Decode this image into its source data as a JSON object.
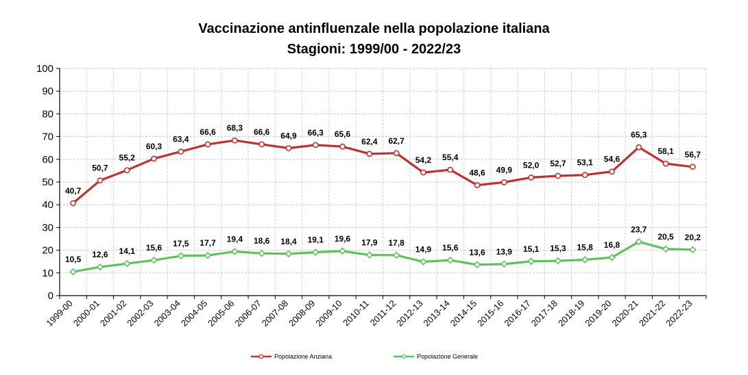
{
  "chart_data": {
    "type": "line",
    "title": "Vaccinazione antinfluenzale nella popolazione italiana",
    "subtitle": "Stagioni: 1999/00 - 2022/23",
    "xlabel": "",
    "ylabel": "",
    "ylim": [
      0,
      100
    ],
    "yticks": [
      "0",
      "10",
      "20",
      "30",
      "40",
      "50",
      "60",
      "70",
      "80",
      "90",
      "100"
    ],
    "grid": true,
    "legend_position": "bottom",
    "categories": [
      "1999-00",
      "2000-01",
      "2001-02",
      "2002-03",
      "2003-04",
      "2004-05",
      "2005-06",
      "2006-07",
      "2007-08",
      "2008-09",
      "2009-10",
      "2010-11",
      "2011-12",
      "2012-13",
      "2013-14",
      "2014-15",
      "2015-16",
      "2016-17",
      "2017-18",
      "2018-19",
      "2019-20",
      "2020-21",
      "2021-22",
      "2022-23"
    ],
    "series": [
      {
        "name": "Popolazione Anziana",
        "color": "#c0302c",
        "values": [
          40.7,
          50.7,
          55.2,
          60.3,
          63.4,
          66.6,
          68.3,
          66.6,
          64.9,
          66.3,
          65.6,
          62.4,
          62.7,
          54.2,
          55.4,
          48.6,
          49.9,
          52.0,
          52.7,
          53.1,
          54.6,
          65.3,
          58.1,
          56.7
        ],
        "labels": [
          "40,7",
          "50,7",
          "55,2",
          "60,3",
          "63,4",
          "66,6",
          "68,3",
          "66,6",
          "64,9",
          "66,3",
          "65,6",
          "62,4",
          "62,7",
          "54,2",
          "55,4",
          "48,6",
          "49,9",
          "52,0",
          "52,7",
          "53,1",
          "54,6",
          "65,3",
          "58,1",
          "56,7"
        ]
      },
      {
        "name": "Popolazione Generale",
        "color": "#5cc35c",
        "values": [
          10.5,
          12.6,
          14.1,
          15.6,
          17.5,
          17.7,
          19.4,
          18.6,
          18.4,
          19.1,
          19.6,
          17.9,
          17.8,
          14.9,
          15.6,
          13.6,
          13.9,
          15.1,
          15.3,
          15.8,
          16.8,
          23.7,
          20.5,
          20.2
        ],
        "labels": [
          "10,5",
          "12,6",
          "14,1",
          "15,6",
          "17,5",
          "17,7",
          "19,4",
          "18,6",
          "18,4",
          "19,1",
          "19,6",
          "17,9",
          "17,8",
          "14,9",
          "15,6",
          "13,6",
          "13,9",
          "15,1",
          "15,3",
          "15,8",
          "16,8",
          "23,7",
          "20,5",
          "20,2"
        ]
      }
    ]
  }
}
